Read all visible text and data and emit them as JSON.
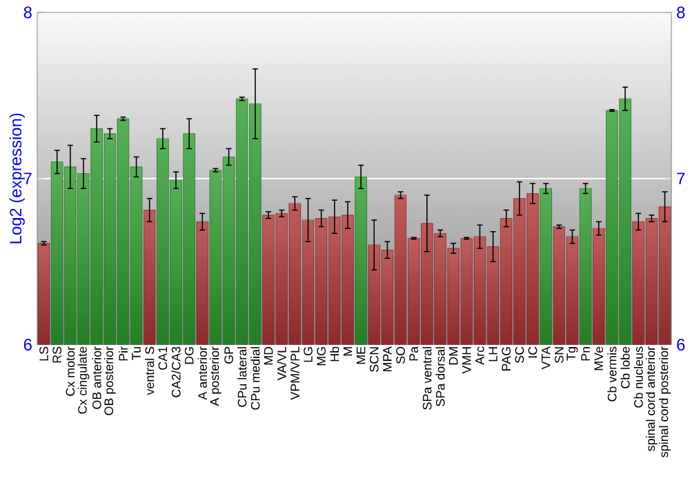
{
  "chart_data": {
    "type": "bar",
    "ylabel": "Log2 (expression)",
    "categories": [
      "LS",
      "RS",
      "Cx motor",
      "Cx cingulate",
      "OB anterior",
      "OB posterior",
      "Pir",
      "Tu",
      "ventral S",
      "CA1",
      "CA2/CA3",
      "DG",
      "A anterior",
      "A posterior",
      "GP",
      "CPu lateral",
      "CPu medial",
      "MD",
      "VA/VL",
      "VPM/VPL",
      "LG",
      "MG",
      "Hb",
      "M",
      "ME",
      "SCN",
      "MPA",
      "SO",
      "Pa",
      "SPa ventral",
      "SPa dorsal",
      "DM",
      "VMH",
      "Arc",
      "LH",
      "PAG",
      "SC",
      "IC",
      "VTA",
      "SN",
      "Tg",
      "Pn",
      "MVe",
      "Cb vermis",
      "Cb lobe",
      "Cb nucleus",
      "spinal cord anterior",
      "spinal cord posterior"
    ],
    "values": [
      6.61,
      7.1,
      7.07,
      7.03,
      7.3,
      7.27,
      7.36,
      7.07,
      6.81,
      7.24,
      6.99,
      7.27,
      6.74,
      7.05,
      7.13,
      7.48,
      7.45,
      6.78,
      6.79,
      6.85,
      6.75,
      6.76,
      6.77,
      6.78,
      7.01,
      6.6,
      6.57,
      6.9,
      6.64,
      6.73,
      6.67,
      6.58,
      6.64,
      6.65,
      6.59,
      6.76,
      6.88,
      6.91,
      6.94,
      6.71,
      6.65,
      6.94,
      6.7,
      7.41,
      7.48,
      6.74,
      6.76,
      6.83
    ],
    "errors": [
      0.01,
      0.07,
      0.13,
      0.09,
      0.08,
      0.03,
      0.01,
      0.06,
      0.07,
      0.06,
      0.05,
      0.09,
      0.05,
      0.01,
      0.05,
      0.01,
      0.21,
      0.02,
      0.02,
      0.04,
      0.13,
      0.05,
      0.1,
      0.08,
      0.07,
      0.15,
      0.05,
      0.02,
      0.005,
      0.17,
      0.02,
      0.03,
      0.005,
      0.07,
      0.09,
      0.05,
      0.1,
      0.06,
      0.03,
      0.01,
      0.04,
      0.03,
      0.04,
      0.005,
      0.07,
      0.05,
      0.02,
      0.09
    ],
    "colors": [
      "#b03434",
      "#2f9e2f",
      "#2f9e2f",
      "#2f9e2f",
      "#2f9e2f",
      "#2f9e2f",
      "#2f9e2f",
      "#2f9e2f",
      "#b03434",
      "#2f9e2f",
      "#2f9e2f",
      "#2f9e2f",
      "#b03434",
      "#2f9e2f",
      "#2f9e2f",
      "#2f9e2f",
      "#2f9e2f",
      "#b03434",
      "#b03434",
      "#b03434",
      "#b03434",
      "#b03434",
      "#b03434",
      "#b03434",
      "#2f9e2f",
      "#b03434",
      "#b03434",
      "#b03434",
      "#b03434",
      "#b03434",
      "#b03434",
      "#b03434",
      "#b03434",
      "#b03434",
      "#b03434",
      "#b03434",
      "#b03434",
      "#b03434",
      "#2f9e2f",
      "#b03434",
      "#b03434",
      "#2f9e2f",
      "#b03434",
      "#2f9e2f",
      "#2f9e2f",
      "#b03434",
      "#b03434",
      "#b03434"
    ],
    "ylim": [
      6,
      8
    ],
    "yticks": [
      6,
      7,
      8
    ],
    "y2lim": [
      6,
      8
    ],
    "y2ticks": [
      6,
      7,
      8
    ],
    "grid": "y"
  }
}
